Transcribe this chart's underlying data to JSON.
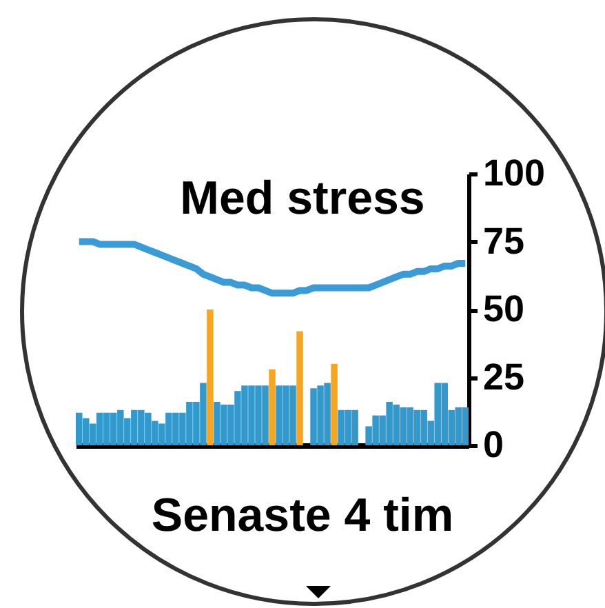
{
  "chart_data": {
    "type": "bar",
    "title": "Med stress",
    "annotations": [
      "Senaste 4 tim"
    ],
    "categories": [
      null,
      null,
      null,
      null,
      null,
      null,
      null,
      null,
      null,
      null,
      null,
      null,
      null,
      null,
      null,
      null,
      null,
      null,
      null,
      null,
      null,
      null,
      null,
      null,
      null,
      null,
      null,
      null,
      null,
      null,
      null,
      null,
      null,
      null,
      null,
      null,
      null,
      null,
      null,
      null,
      null,
      null,
      null,
      null,
      null,
      null,
      null,
      null,
      null,
      null,
      null,
      null,
      null,
      null,
      null,
      null,
      null
    ],
    "series": [
      {
        "colors": [
          "#3399cc",
          "#3399cc",
          "#3399cc",
          "#3399cc",
          "#3399cc",
          "#3399cc",
          "#3399cc",
          "#3399cc",
          "#3399cc",
          "#3399cc",
          "#3399cc",
          "#3399cc",
          "#3399cc",
          "#3399cc",
          "#3399cc",
          "#3399cc",
          "#3399cc",
          "#3399cc",
          "#3399cc",
          "#f5a623",
          "#3399cc",
          "#3399cc",
          "#3399cc",
          "#3399cc",
          "#3399cc",
          "#3399cc",
          "#3399cc",
          "#3399cc",
          "#f5a623",
          "#3399cc",
          "#3399cc",
          "#3399cc",
          "#f5a623",
          "#3399cc",
          "#3399cc",
          "#3399cc",
          "#3399cc",
          "#f5a623",
          "#3399cc",
          "#3399cc",
          "#3399cc",
          "#3399cc",
          "#3399cc",
          "#3399cc",
          "#3399cc",
          "#3399cc",
          "#3399cc",
          "#3399cc",
          "#3399cc",
          "#3399cc",
          "#3399cc",
          "#3399cc",
          "#3399cc",
          "#3399cc",
          "#3399cc",
          "#3399cc",
          "#3399cc"
        ],
        "values": [
          12,
          10,
          8,
          12,
          12,
          12,
          13,
          10,
          13,
          13,
          12,
          9,
          8,
          12,
          12,
          12,
          16,
          16,
          23,
          50,
          16,
          15,
          15,
          20,
          22,
          22,
          22,
          22,
          28,
          22,
          22,
          22,
          42,
          null,
          21,
          22,
          23,
          30,
          13,
          13,
          13,
          null,
          7,
          11,
          11,
          16,
          15,
          14,
          14,
          13,
          13,
          9,
          23,
          23,
          13,
          14,
          14
        ]
      },
      {
        "type": "line",
        "color": "#3b9bd6",
        "values": [
          75,
          75,
          75,
          74,
          74,
          74,
          74,
          74,
          74,
          73,
          72,
          71,
          70,
          69,
          68,
          67,
          66,
          65,
          63,
          62,
          61,
          60,
          60,
          59,
          59,
          58,
          58,
          57,
          56,
          56,
          56,
          56,
          57,
          57,
          58,
          58,
          58,
          58,
          58,
          58,
          58,
          58,
          58,
          59,
          60,
          61,
          62,
          63,
          63,
          64,
          64,
          65,
          65,
          66,
          66,
          67,
          67
        ]
      }
    ],
    "ylim": [
      0,
      100
    ],
    "yticks": [
      0,
      25,
      50,
      75,
      100
    ],
    "tick_labels": "y",
    "grid": false,
    "marker": "none",
    "line_style": "solid"
  }
}
